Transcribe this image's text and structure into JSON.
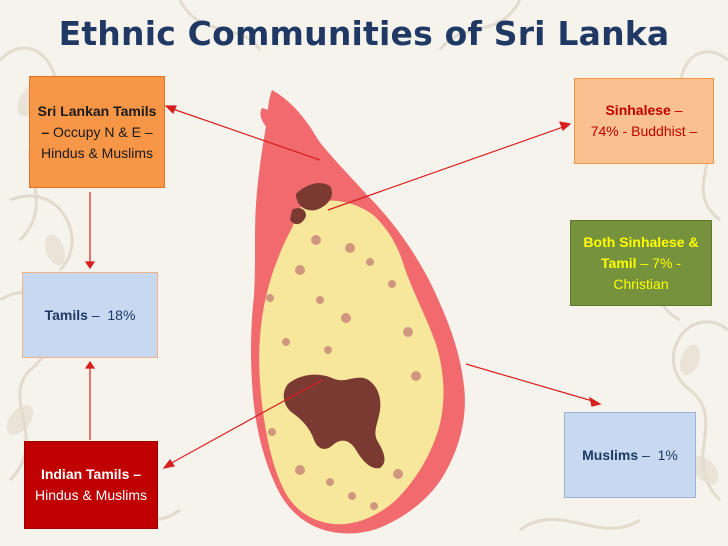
{
  "slide": {
    "title": "Ethnic Communities of Sri Lanka"
  },
  "boxes": {
    "sl_tamils": {
      "heading": "Sri Lankan Tamils",
      "dash": " –",
      "text": "Occupy N & E – Hindus & Muslims"
    },
    "sinhalese": {
      "heading": "Sinhalese",
      "dash": " –",
      "text": "74% - Buddhist –"
    },
    "both": {
      "heading": "Both Sinhalese & Tamil",
      "dash": " –",
      "text": " 7% - Christian"
    },
    "tamils": {
      "heading": "Tamils",
      "dash": " –",
      "text": "  18%"
    },
    "indian_tamils": {
      "heading": "Indian Tamils",
      "dash": " –",
      "text": "Hindus & Muslims"
    },
    "muslims": {
      "heading": "Muslims",
      "dash": " –",
      "text": "  1%"
    }
  },
  "colors": {
    "title": "#1f3864",
    "sinhalese_region": "#f7e79a",
    "tamil_region": "#f06a6e",
    "indian_tamil_region": "#7a3a32",
    "arrow": "#d62020"
  }
}
